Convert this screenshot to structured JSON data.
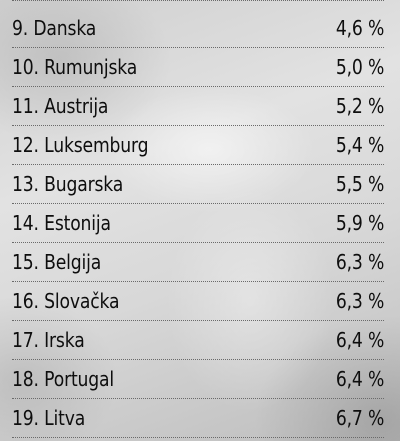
{
  "rows": [
    {
      "label": "9.  Danska",
      "value": "4,6 %"
    },
    {
      "label": "10. Rumunjska",
      "value": "5,0 %"
    },
    {
      "label": "11. Austrija",
      "value": "5,2 %"
    },
    {
      "label": "12. Luksemburg",
      "value": "5,4 %"
    },
    {
      "label": "13. Bugarska",
      "value": "5,5 %"
    },
    {
      "label": "14. Estonija",
      "value": "5,9 %"
    },
    {
      "label": "15. Belgija",
      "value": "6,3 %"
    },
    {
      "label": "16. Slovačka",
      "value": "6,3 %"
    },
    {
      "label": "17. Irska",
      "value": "6,4 %"
    },
    {
      "label": "18. Portugal",
      "value": "6,4 %"
    },
    {
      "label": "19. Litva",
      "value": "6,7 %"
    }
  ]
}
